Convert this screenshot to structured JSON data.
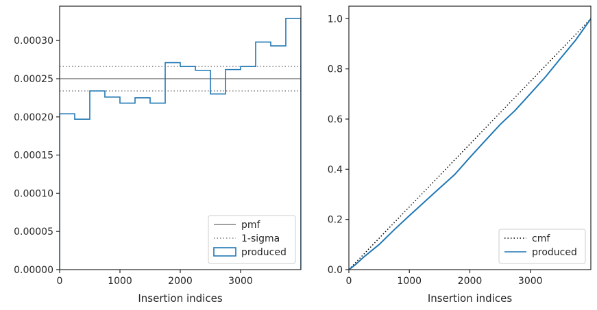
{
  "chart_data": [
    {
      "type": "histogram",
      "xlabel": "Insertion indices",
      "ylabel": "",
      "xlim": [
        0,
        4000
      ],
      "ylim": [
        0,
        0.000345
      ],
      "xticks": [
        0,
        1000,
        2000,
        3000
      ],
      "xtick_labels": [
        "0",
        "1000",
        "2000",
        "3000"
      ],
      "yticks": [
        0,
        5e-05,
        0.0001,
        0.00015,
        0.0002,
        0.00025,
        0.0003
      ],
      "ytick_labels": [
        "0.00000",
        "0.00005",
        "0.00010",
        "0.00015",
        "0.00020",
        "0.00025",
        "0.00030"
      ],
      "bin_edges": [
        0,
        250,
        500,
        750,
        1000,
        1250,
        1500,
        1750,
        2000,
        2250,
        2500,
        2750,
        3000,
        3250,
        3500,
        3750,
        4000
      ],
      "series": [
        {
          "name": "pmf",
          "style": "solid",
          "color": "#808080",
          "y": 0.00025
        },
        {
          "name": "1-sigma",
          "style": "dotted",
          "color": "#808080",
          "y": [
            0.000234,
            0.000266
          ]
        },
        {
          "name": "produced",
          "style": "step",
          "color": "#1f77b4",
          "values": [
            0.000204,
            0.000197,
            0.000234,
            0.000226,
            0.000218,
            0.000225,
            0.000218,
            0.000271,
            0.000266,
            0.000261,
            0.00023,
            0.000262,
            0.000266,
            0.000298,
            0.000293,
            0.000329
          ]
        }
      ],
      "legend": {
        "placement": "lower right",
        "entries": [
          "pmf",
          "1-sigma",
          "produced"
        ]
      },
      "grid": false
    },
    {
      "type": "line",
      "xlabel": "Insertion indices",
      "ylabel": "",
      "xlim": [
        0,
        4000
      ],
      "ylim": [
        0,
        1.05
      ],
      "xticks": [
        0,
        1000,
        2000,
        3000
      ],
      "xtick_labels": [
        "0",
        "1000",
        "2000",
        "3000"
      ],
      "yticks": [
        0,
        0.2,
        0.4,
        0.6,
        0.8,
        1.0
      ],
      "ytick_labels": [
        "0.0",
        "0.2",
        "0.4",
        "0.6",
        "0.8",
        "1.0"
      ],
      "series": [
        {
          "name": "cmf",
          "style": "dotted",
          "color": "#000000",
          "x": [
            0,
            4000
          ],
          "y": [
            0,
            1
          ]
        },
        {
          "name": "produced",
          "style": "solid",
          "color": "#1f77b4",
          "x": [
            0,
            100,
            250,
            500,
            750,
            1000,
            1250,
            1500,
            1750,
            2000,
            2250,
            2500,
            2750,
            3000,
            3250,
            3500,
            3750,
            4000
          ],
          "y": [
            0,
            0.018,
            0.051,
            0.1,
            0.159,
            0.215,
            0.27,
            0.325,
            0.379,
            0.447,
            0.513,
            0.578,
            0.635,
            0.701,
            0.768,
            0.842,
            0.915,
            1.0
          ]
        }
      ],
      "legend": {
        "placement": "lower right",
        "entries": [
          "cmf",
          "produced"
        ]
      },
      "grid": false
    }
  ]
}
